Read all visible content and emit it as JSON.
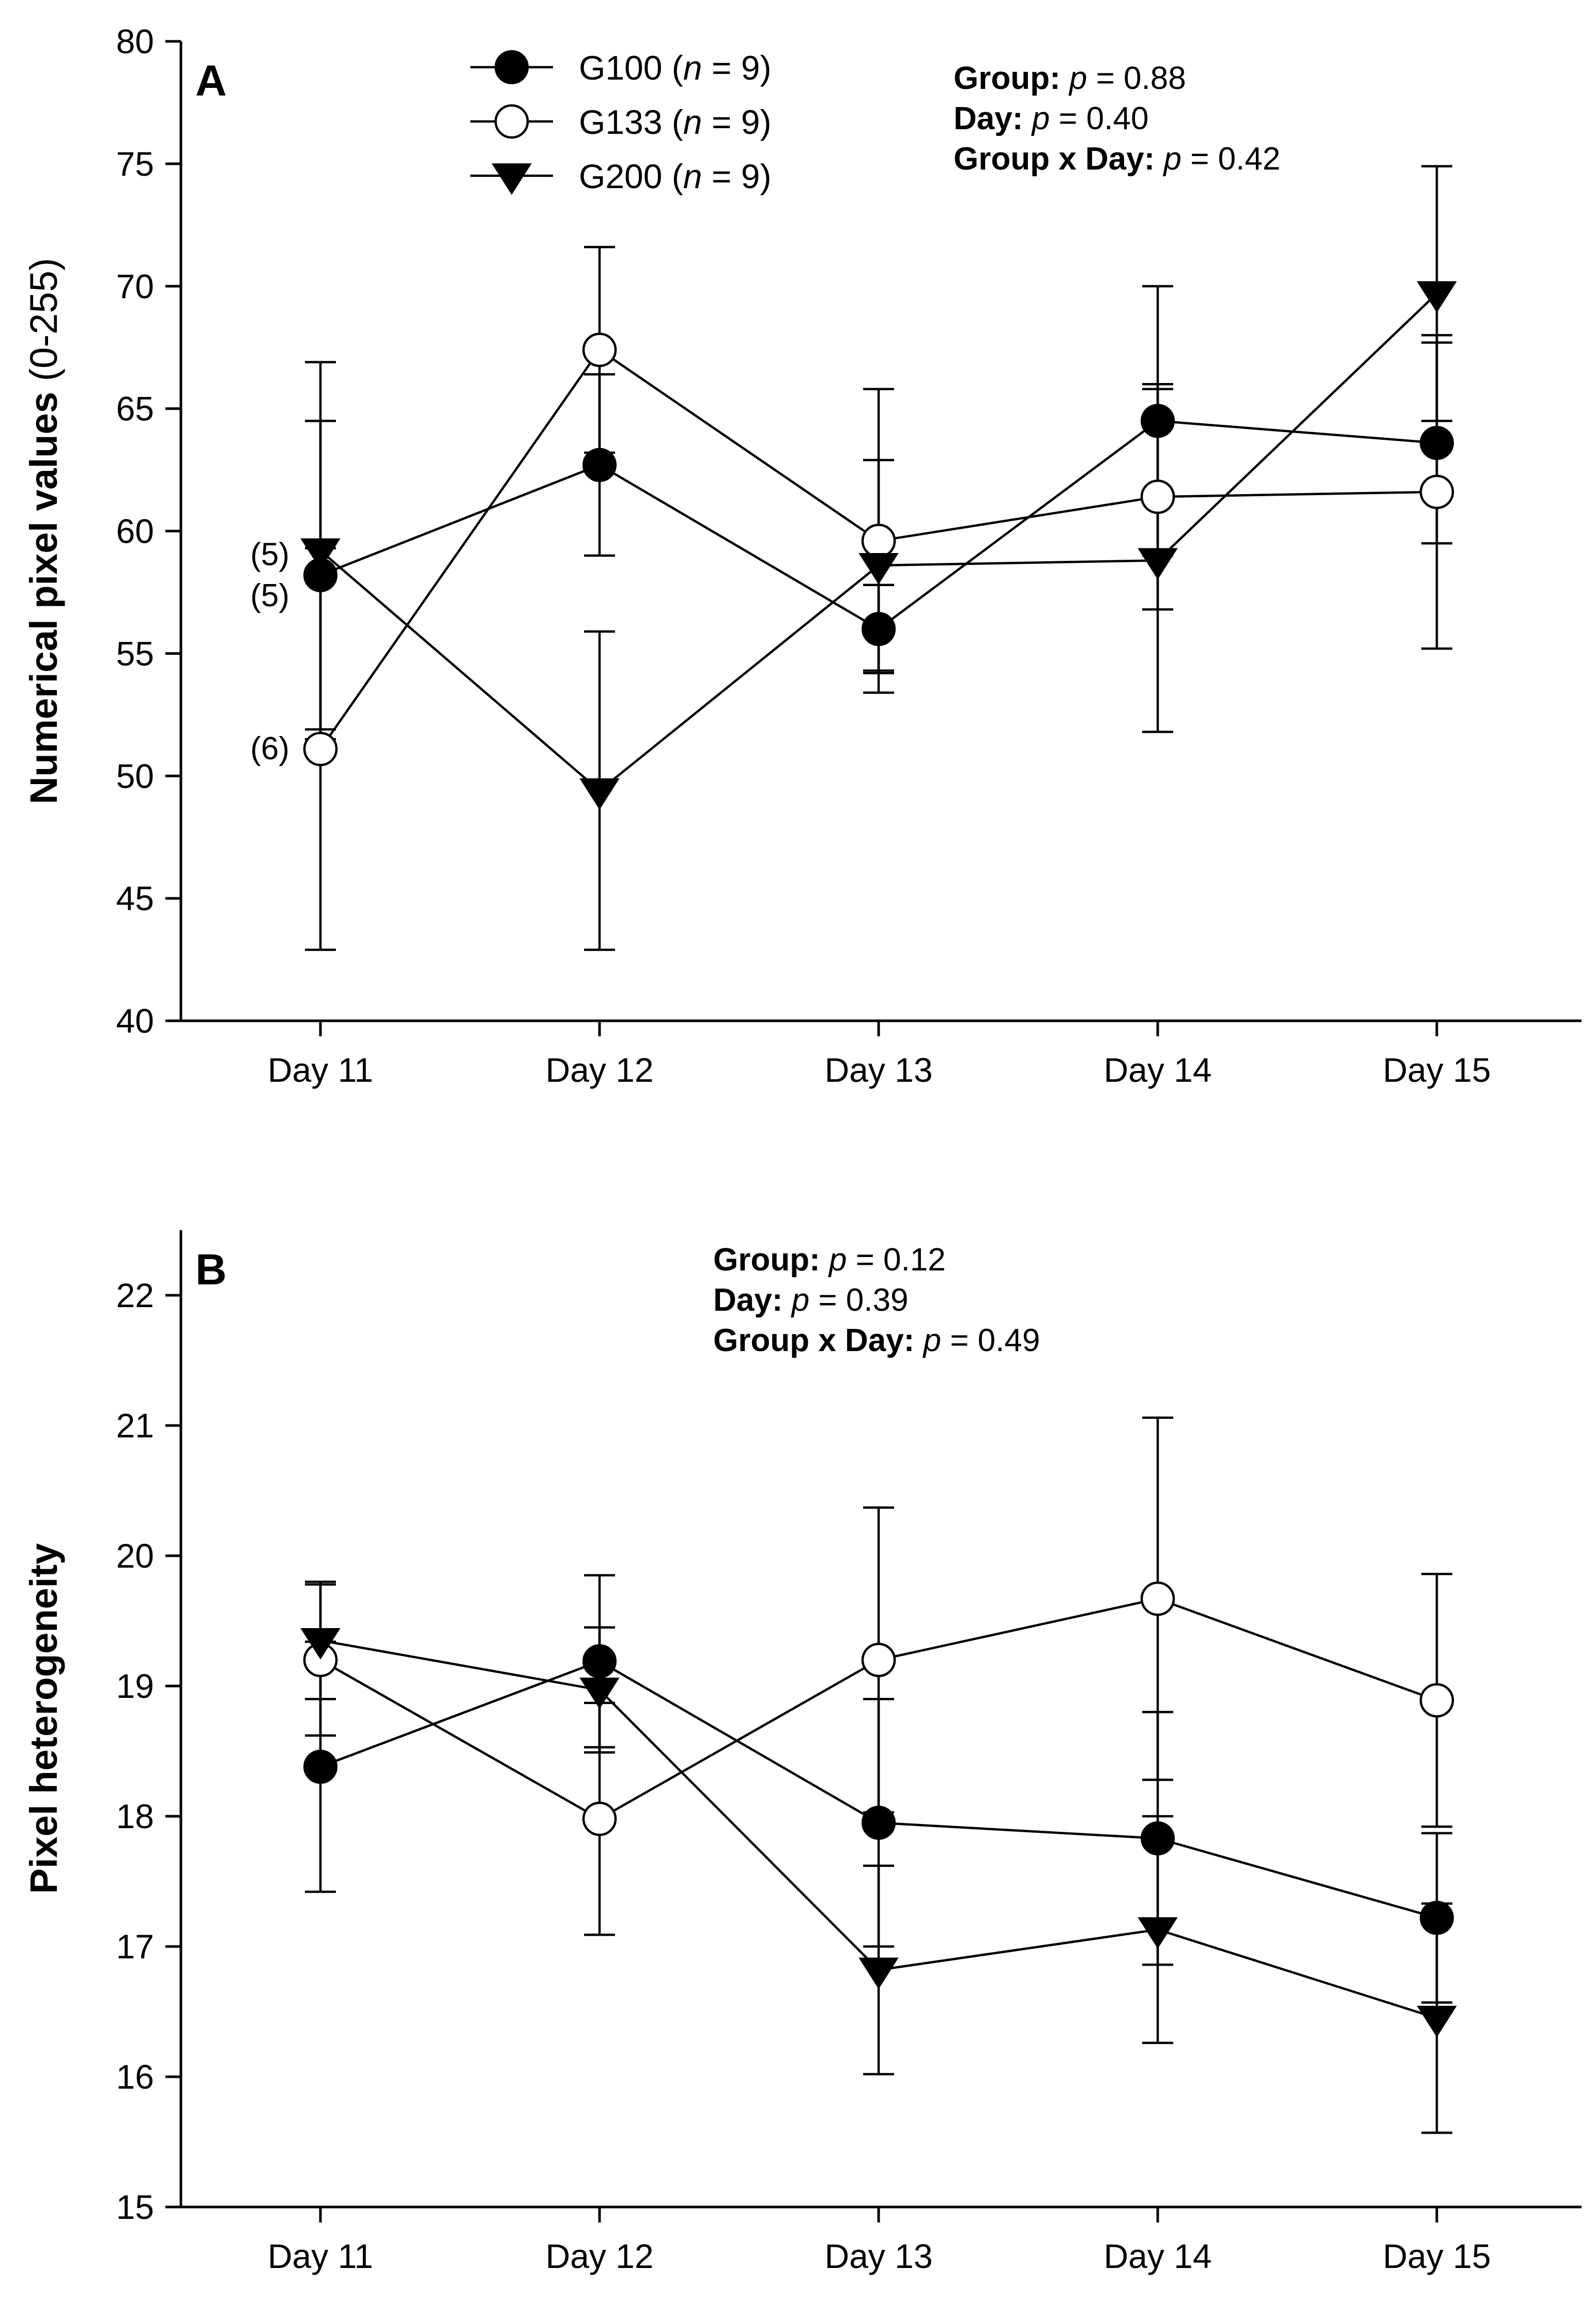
{
  "chart_data": [
    {
      "type": "line",
      "panel": "A",
      "categories": [
        "Day 11",
        "Day 12",
        "Day 13",
        "Day 14",
        "Day 15"
      ],
      "ylabel_main": "Numerical pixel values",
      "ylabel_suffix": "(0-255)",
      "ylim": [
        40,
        80
      ],
      "yticks": [
        40,
        45,
        50,
        55,
        60,
        65,
        70,
        75,
        80
      ],
      "series": [
        {
          "name": "G100",
          "marker": "filled-circle",
          "values": [
            58.2,
            62.7,
            56.0,
            64.5,
            63.6
          ],
          "errors": [
            6.3,
            3.7,
            1.8,
            5.5,
            4.1
          ]
        },
        {
          "name": "G133",
          "marker": "open-circle",
          "values": [
            51.1,
            67.4,
            59.6,
            61.4,
            61.6
          ],
          "errors": [
            8.2,
            4.2,
            6.2,
            4.6,
            6.4
          ]
        },
        {
          "name": "G200",
          "marker": "filled-triangle-down",
          "values": [
            59.2,
            49.4,
            58.6,
            58.8,
            69.7
          ],
          "errors": [
            7.7,
            6.5,
            4.3,
            7.0,
            5.2
          ]
        }
      ],
      "annotations": [
        {
          "text": "(5)",
          "series": "G200",
          "category": "Day 11"
        },
        {
          "text": "(5)",
          "series": "G100",
          "category": "Day 11"
        },
        {
          "text": "(6)",
          "series": "G133",
          "category": "Day 11"
        }
      ],
      "stats": [
        {
          "label": "Group:",
          "p": "p",
          "value": " = 0.88"
        },
        {
          "label": "Day:",
          "p": "p",
          "value": " = 0.40"
        },
        {
          "label": "Group x Day:",
          "p": "p",
          "value": " = 0.42"
        }
      ]
    },
    {
      "type": "line",
      "panel": "B",
      "categories": [
        "Day 11",
        "Day 12",
        "Day 13",
        "Day 14",
        "Day 15"
      ],
      "ylabel_main": "Pixel heterogeneity",
      "ylabel_suffix": "",
      "ylim": [
        15,
        22.5
      ],
      "yticks": [
        15,
        16,
        17,
        18,
        19,
        20,
        21,
        22
      ],
      "series": [
        {
          "name": "G100",
          "marker": "filled-circle",
          "values": [
            18.38,
            19.19,
            17.95,
            17.83,
            17.22
          ],
          "errors": [
            0.96,
            0.66,
            0.95,
            0.97,
            0.65
          ]
        },
        {
          "name": "G133",
          "marker": "open-circle",
          "values": [
            19.2,
            17.98,
            19.2,
            19.67,
            18.89
          ],
          "errors": [
            0.58,
            0.89,
            1.17,
            1.39,
            0.97
          ]
        },
        {
          "name": "G200",
          "marker": "filled-triangle-down",
          "values": [
            19.35,
            18.97,
            16.82,
            17.13,
            16.45
          ],
          "errors": [
            0.45,
            0.48,
            0.8,
            0.87,
            0.88
          ]
        }
      ],
      "annotations": [],
      "stats": [
        {
          "label": "Group:",
          "p": "p",
          "value": " = 0.12"
        },
        {
          "label": "Day:",
          "p": "p",
          "value": " = 0.39"
        },
        {
          "label": "Group x Day:",
          "p": "p",
          "value": " = 0.49"
        }
      ]
    }
  ],
  "legend": [
    {
      "name": "G100",
      "open": " (",
      "n": "n",
      "eq": " = 9)",
      "marker": "filled-circle"
    },
    {
      "name": "G133",
      "open": " (",
      "n": "n",
      "eq": " = 9)",
      "marker": "open-circle"
    },
    {
      "name": "G200",
      "open": " (",
      "n": "n",
      "eq": " = 9)",
      "marker": "filled-triangle-down"
    }
  ]
}
